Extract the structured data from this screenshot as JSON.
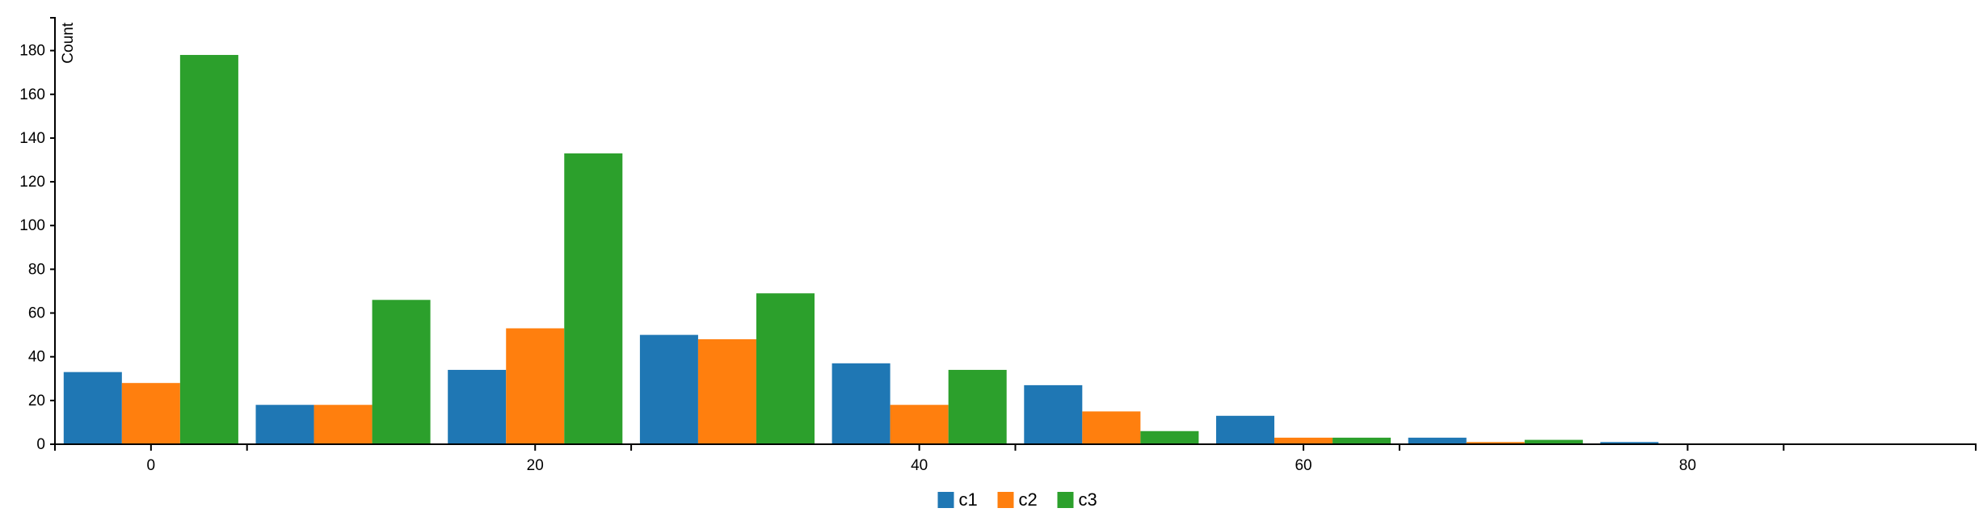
{
  "chart_data": {
    "type": "bar",
    "ylabel": "Count",
    "xlabel": "",
    "x_ticks": [
      "0",
      "20",
      "40",
      "60",
      "80"
    ],
    "y_ticks": [
      "0",
      "20",
      "40",
      "60",
      "80",
      "100",
      "120",
      "140",
      "160",
      "180"
    ],
    "xlim": [
      -5,
      95
    ],
    "ylim": [
      0,
      195
    ],
    "bin_width": 10,
    "bins": [
      -5,
      5,
      15,
      25,
      35,
      45,
      55,
      65,
      75,
      85
    ],
    "series": [
      {
        "name": "c1",
        "color": "#1f77b4",
        "values": [
          33,
          18,
          34,
          50,
          37,
          27,
          13,
          3,
          1,
          0
        ]
      },
      {
        "name": "c2",
        "color": "#ff7f0e",
        "values": [
          28,
          18,
          53,
          48,
          18,
          15,
          3,
          1,
          0,
          0
        ]
      },
      {
        "name": "c3",
        "color": "#2ca02c",
        "values": [
          178,
          66,
          133,
          69,
          34,
          6,
          3,
          2,
          0,
          0
        ]
      }
    ],
    "legend_position": "bottom-center",
    "grid": false
  }
}
